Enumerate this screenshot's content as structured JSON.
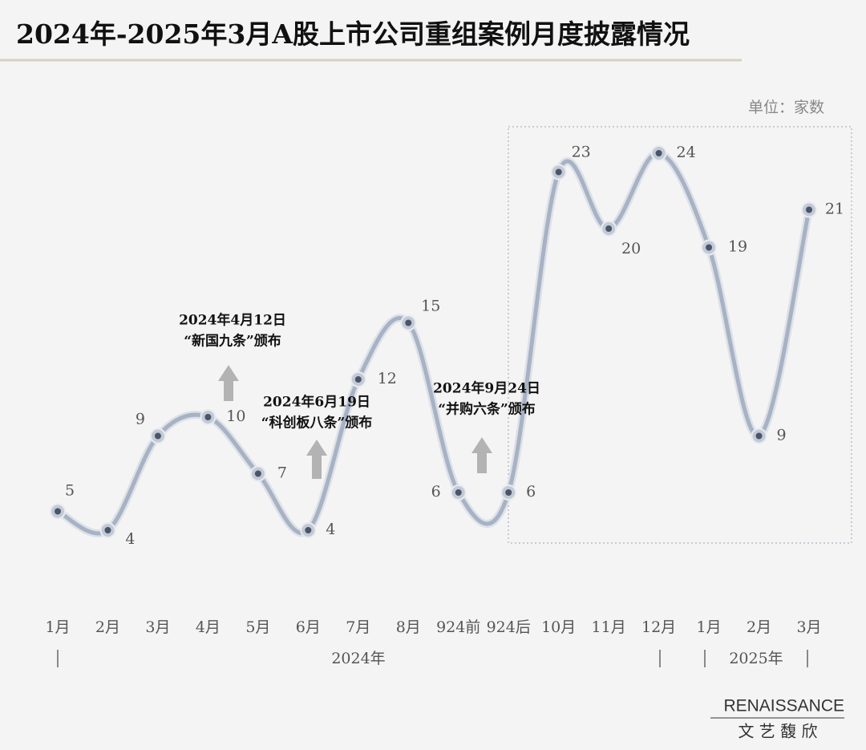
{
  "chart_data": {
    "type": "line",
    "title": "2024年-2025年3月A股上市公司重组案例月度披露情况",
    "unit": "单位：家数",
    "categories": [
      "1月",
      "2月",
      "3月",
      "4月",
      "5月",
      "6月",
      "7月",
      "8月",
      "924前",
      "924后",
      "10月",
      "11月",
      "12月",
      "1月",
      "2月",
      "3月"
    ],
    "series": [
      {
        "color": "#a7b2c4",
        "values": [
          5,
          4,
          9,
          10,
          7,
          4,
          12,
          15,
          6,
          6,
          23,
          20,
          24,
          19,
          9,
          21
        ]
      }
    ],
    "groups": [
      "2024年",
      "2025年"
    ],
    "annotations": [
      [
        "2024年4月12日",
        "“新国九条”颁布"
      ],
      [
        "2024年6月19日",
        "“科创板八条”颁布"
      ],
      [
        "2024年9月24日",
        "“并购六条”颁布"
      ]
    ],
    "logo": [
      "RENAISSANCE",
      "文 艺 馥 欣"
    ]
  }
}
